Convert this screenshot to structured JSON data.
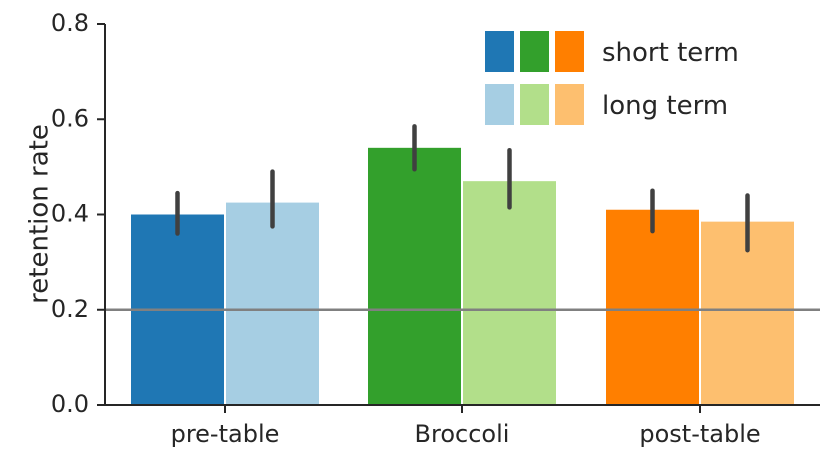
{
  "chart_data": {
    "type": "bar",
    "categories": [
      "pre-table",
      "Broccoli",
      "post-table"
    ],
    "series": [
      {
        "name": "short term",
        "values": [
          0.4,
          0.54,
          0.41
        ],
        "err_low": [
          0.36,
          0.495,
          0.365
        ],
        "err_high": [
          0.445,
          0.585,
          0.45
        ]
      },
      {
        "name": "long term",
        "values": [
          0.425,
          0.47,
          0.385
        ],
        "err_low": [
          0.375,
          0.415,
          0.325
        ],
        "err_high": [
          0.49,
          0.535,
          0.44
        ]
      }
    ],
    "colors": {
      "short term": [
        "#1f77b4",
        "#33a02c",
        "#ff7f00"
      ],
      "long term": [
        "#a6cee3",
        "#b2df8a",
        "#fdbf6f"
      ]
    },
    "errorbar_color": "#404040",
    "reference_line": {
      "y": 0.2,
      "color": "#808080"
    },
    "ylabel": "retention rate",
    "xlabel": "",
    "ylim": [
      0.0,
      0.8
    ],
    "yticks": [
      "0.0",
      "0.2",
      "0.4",
      "0.6",
      "0.8"
    ],
    "legend": {
      "placement": "top-right",
      "entries": [
        "short term",
        "long term"
      ]
    }
  }
}
